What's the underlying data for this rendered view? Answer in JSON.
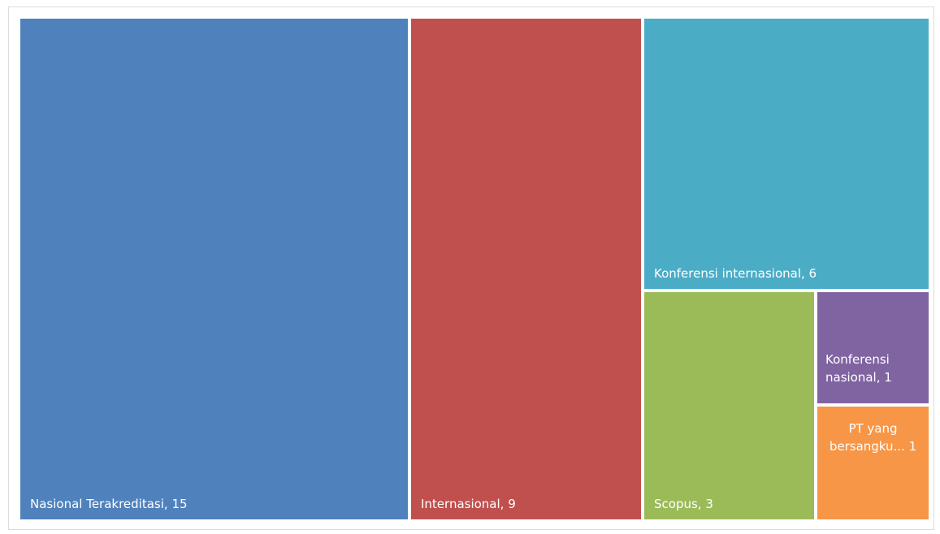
{
  "chart_data": {
    "type": "treemap",
    "items": [
      {
        "label": "Nasional Terakreditasi, 15",
        "name": "Nasional Terakreditasi",
        "value": 15,
        "color": "#4f81bd"
      },
      {
        "label": "Internasional, 9",
        "name": "Internasional",
        "value": 9,
        "color": "#c0504d"
      },
      {
        "label": "Konferensi internasional, 6",
        "name": "Konferensi internasional",
        "value": 6,
        "color": "#4bacc6"
      },
      {
        "label": "Scopus, 3",
        "name": "Scopus",
        "value": 3,
        "color": "#9bbb59"
      },
      {
        "label": "Konferensi nasional, 1",
        "name": "Konferensi nasional",
        "value": 1,
        "color": "#8064a2"
      },
      {
        "label": "PT yang bersangku... 1",
        "name": "PT yang bersangku...",
        "value": 1,
        "color": "#f79646"
      }
    ]
  }
}
